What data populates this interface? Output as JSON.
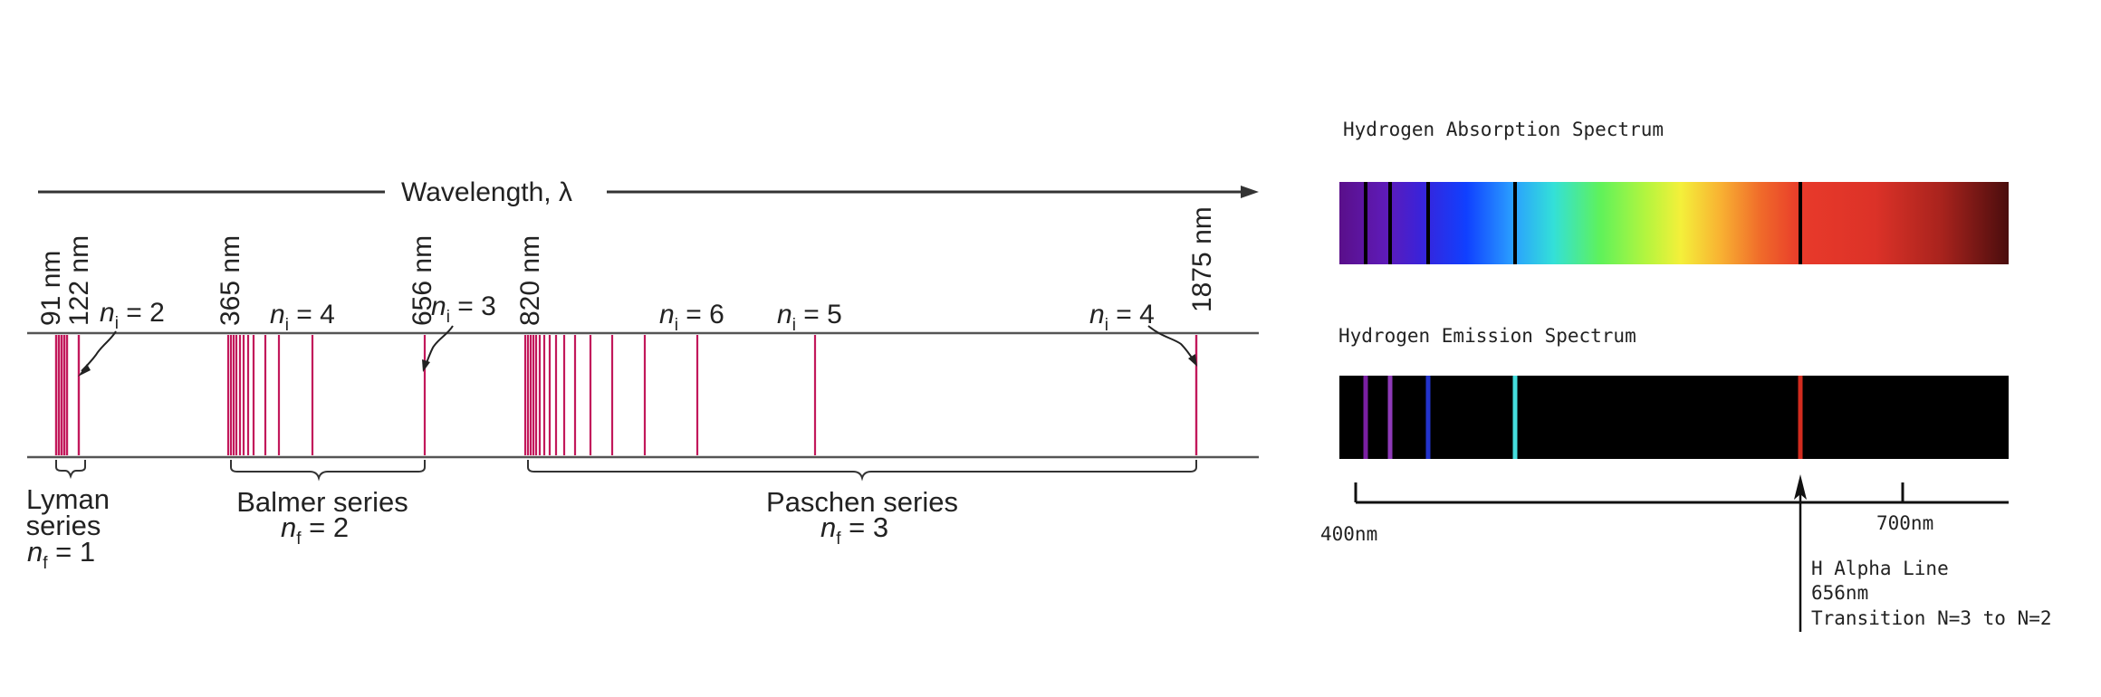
{
  "left_diagram": {
    "axis_label": "Wavelength, λ",
    "wavelength_labels": [
      "91 nm",
      "122 nm",
      "365 nm",
      "656 nm",
      "820 nm",
      "1875 nm"
    ],
    "ni_labels": [
      {
        "n": "n",
        "sub": "i",
        "eq": " = 2"
      },
      {
        "n": "n",
        "sub": "i",
        "eq": " = 4"
      },
      {
        "n": "n",
        "sub": "i",
        "eq": " = 3"
      },
      {
        "n": "n",
        "sub": "i",
        "eq": " = 6"
      },
      {
        "n": "n",
        "sub": "i",
        "eq": " = 5"
      },
      {
        "n": "n",
        "sub": "i",
        "eq": " = 4"
      }
    ],
    "series": [
      {
        "name_line1": "Lyman",
        "name_line2": "series",
        "nf": {
          "n": "n",
          "sub": "f",
          "eq": " = 1"
        }
      },
      {
        "name_line1": "Balmer series",
        "name_line2": "",
        "nf": {
          "n": "n",
          "sub": "f",
          "eq": " = 2"
        }
      },
      {
        "name_line1": "Paschen series",
        "name_line2": "",
        "nf": {
          "n": "n",
          "sub": "f",
          "eq": " = 3"
        }
      }
    ],
    "line_color": "#c2185b"
  },
  "right_diagram": {
    "absorption_title": "Hydrogen Absorption Spectrum",
    "emission_title": "Hydrogen Emission Spectrum",
    "scale_left_label": "400nm",
    "scale_right_label": "700nm",
    "h_alpha": {
      "line1": "H Alpha Line",
      "line2": "656nm",
      "line3": "Transition N=3 to N=2"
    },
    "emission_line_colors": [
      "#7a1fa2",
      "#8e3ab8",
      "#2233cc",
      "#44dddd",
      "#d22b1e"
    ]
  }
}
